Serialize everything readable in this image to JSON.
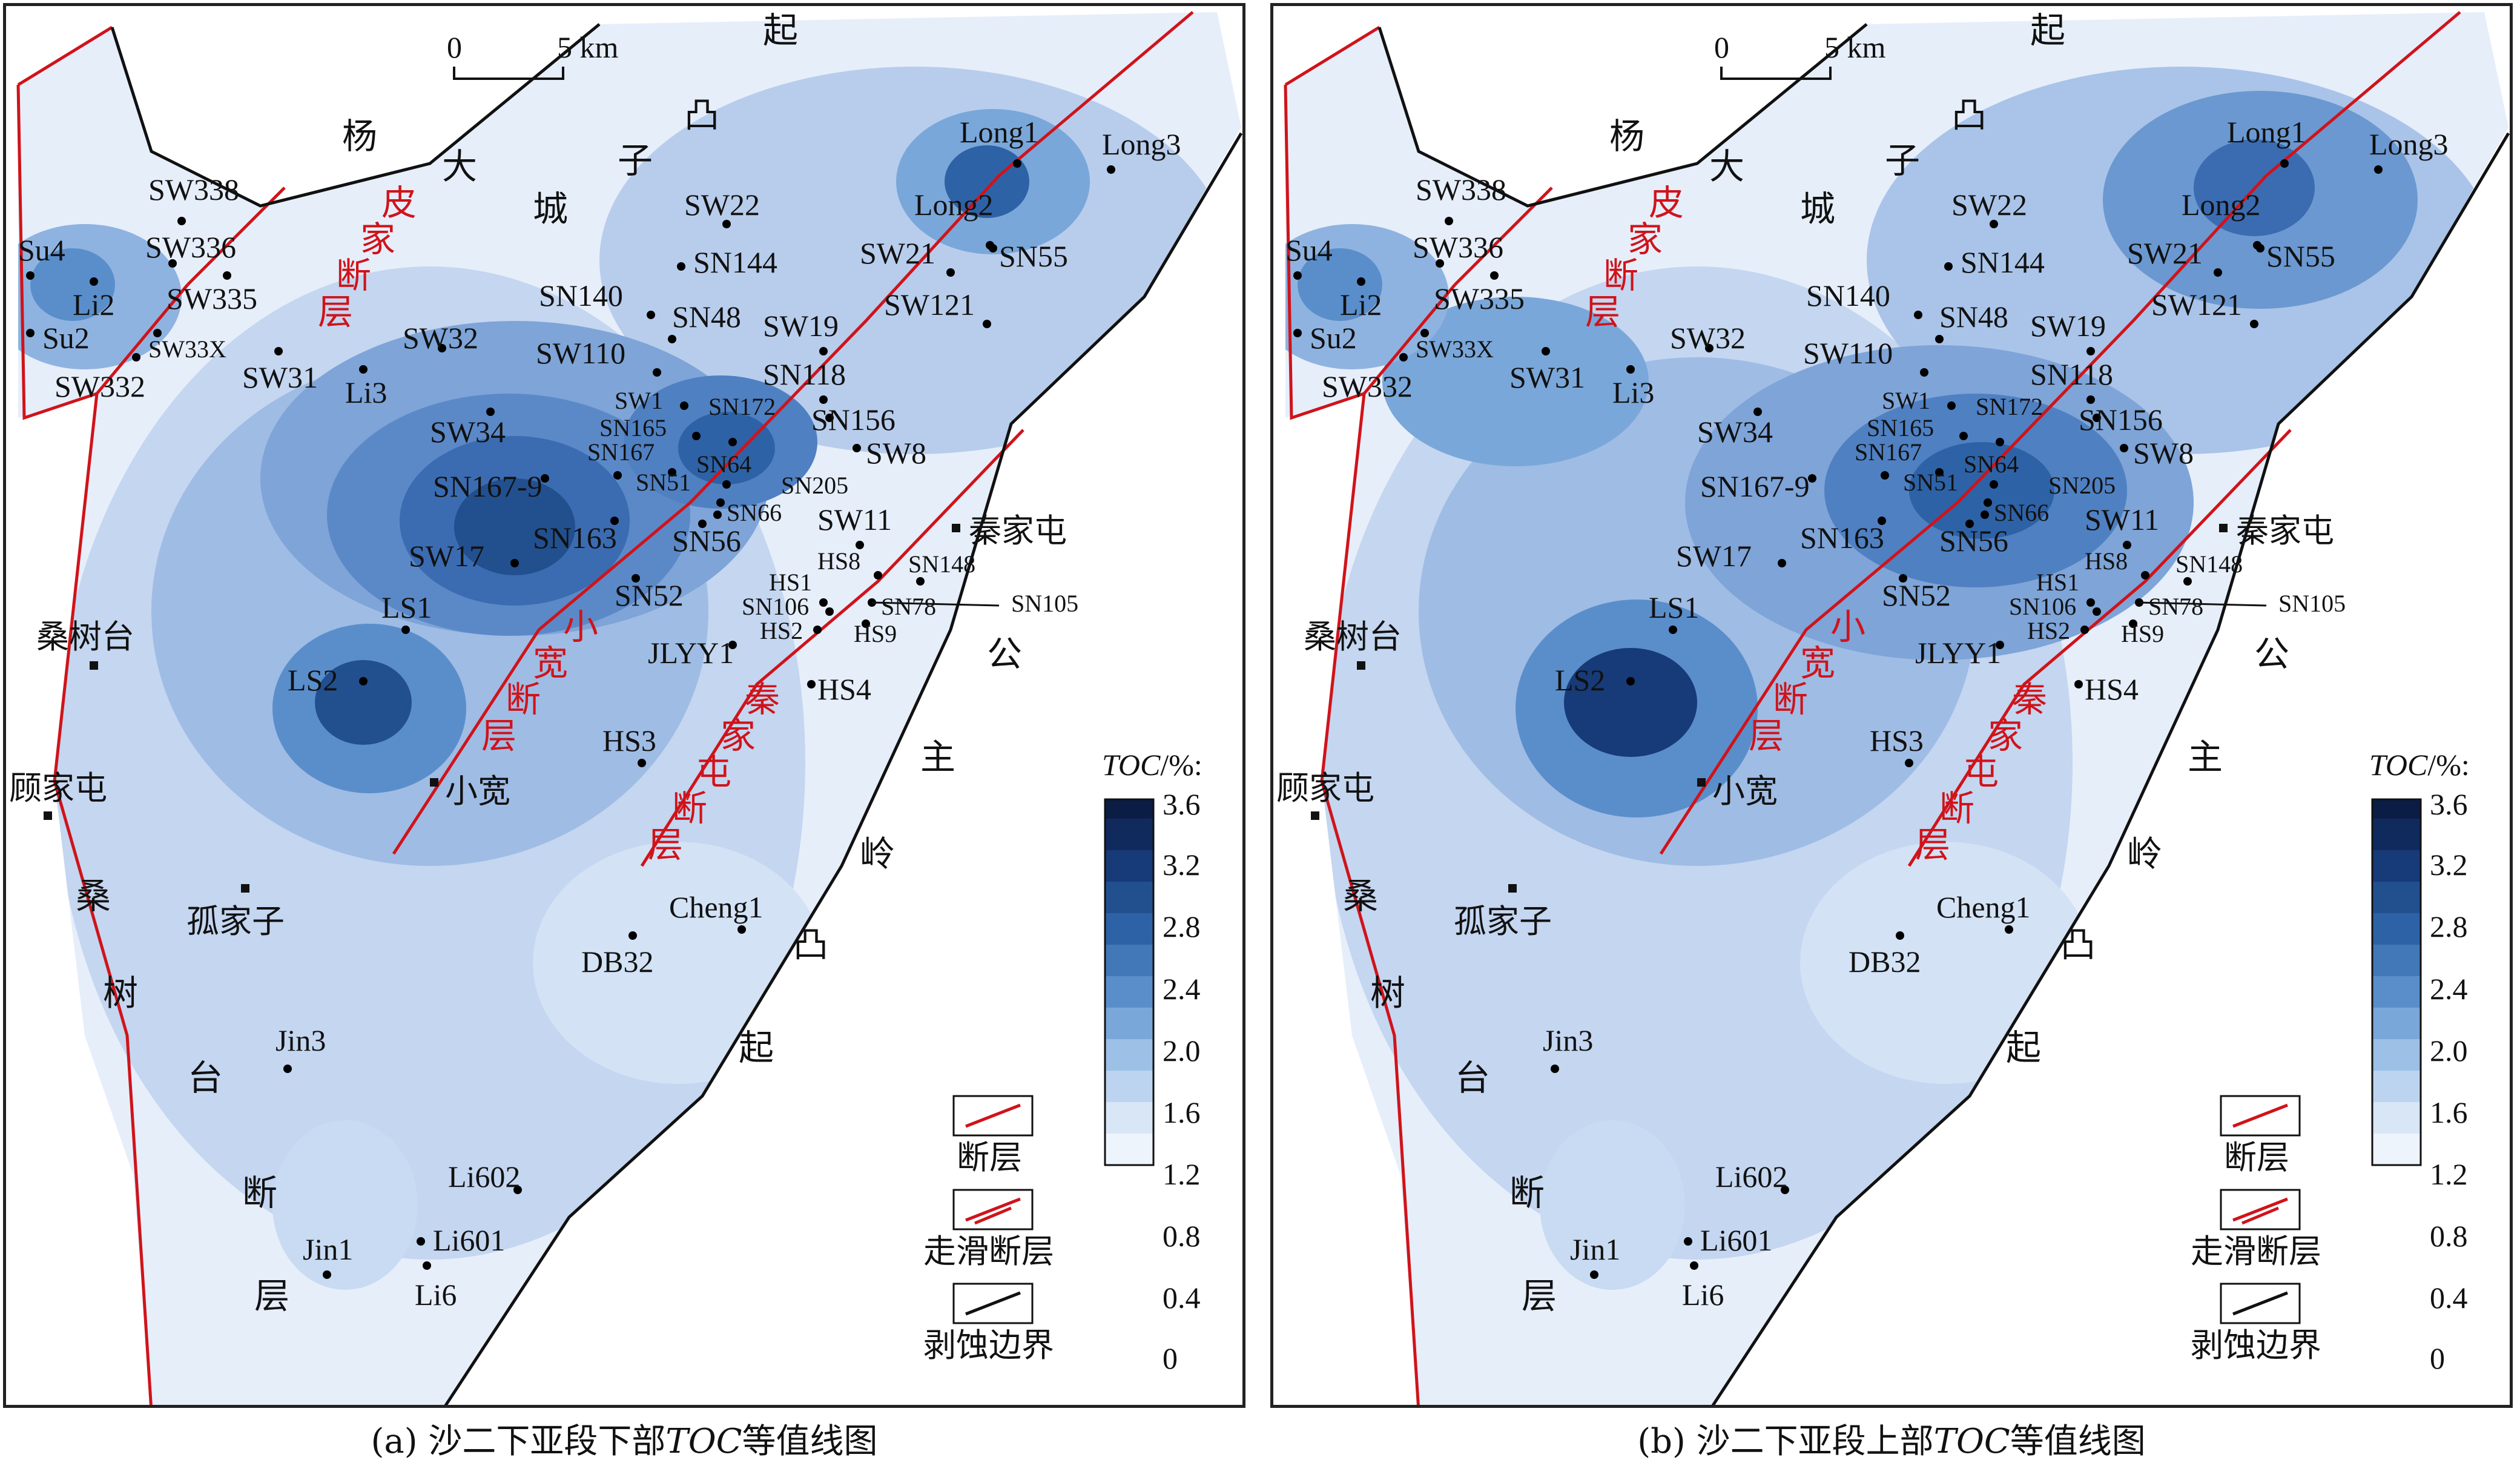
{
  "panels": [
    {
      "id": "a",
      "caption_prefix": "(a) 沙二下亚段下部",
      "caption_toc": "TOC",
      "caption_suffix": "等值线图"
    },
    {
      "id": "b",
      "caption_prefix": "(b) 沙二下亚段上部",
      "caption_toc": "TOC",
      "caption_suffix": "等值线图"
    }
  ],
  "scale_bar": {
    "start": "0",
    "end": "5 km"
  },
  "legend": {
    "title_italic": "TOC",
    "title_suffix": "/%:",
    "ticks": [
      "3.6",
      "3.2",
      "2.8",
      "2.4",
      "2.0",
      "1.6",
      "1.2",
      "0.8",
      "0.4",
      "0"
    ],
    "colors": [
      "#0b1d45",
      "#102a5d",
      "#173a78",
      "#22508f",
      "#2e62a6",
      "#4277b8",
      "#5a8ecb",
      "#7aa7d9",
      "#9cc0e6",
      "#bcd4ef",
      "#d9e6f6",
      "#eef4fc"
    ],
    "symbols": [
      {
        "name": "fault",
        "label": "断层"
      },
      {
        "name": "strike-slip",
        "label": "走滑断层"
      },
      {
        "name": "erosion",
        "label": "剥蚀边界"
      }
    ]
  },
  "regions": {
    "yangdacheng": [
      "杨",
      "大",
      "城",
      "子",
      "凸",
      "起"
    ],
    "gongzhuling": [
      "公",
      "主",
      "岭",
      "凸",
      "起"
    ],
    "sangshutai_fault": [
      "桑",
      "树",
      "台",
      "断",
      "层"
    ],
    "pijia_fault": [
      "皮",
      "家",
      "断",
      "层"
    ],
    "xiaokuan_fault": [
      "小",
      "宽",
      "断",
      "层"
    ],
    "qinjiatun_fault": [
      "秦",
      "家",
      "屯",
      "断",
      "层"
    ]
  },
  "towns": [
    "桑树台",
    "顾家屯",
    "孤家子",
    "秦家屯",
    "小宽"
  ],
  "wells": [
    "Su4",
    "Li2",
    "Su2",
    "SW332",
    "SW338",
    "SW336",
    "SW335",
    "SW33X",
    "SW31",
    "Li3",
    "SW32",
    "SW22",
    "SN144",
    "SN140",
    "SN48",
    "SW110",
    "SW34",
    "SN167-9",
    "SW17",
    "SN163",
    "SN52",
    "LS1",
    "LS2",
    "SW1",
    "SN165",
    "SN167",
    "SN51",
    "SN172",
    "SN64",
    "SN205",
    "SN66",
    "SN56",
    "SW19",
    "SN118",
    "SN156",
    "SW8",
    "SW11",
    "HS1",
    "SN106",
    "HS2",
    "HS8",
    "SN148",
    "SN78",
    "HS9",
    "SN105",
    "JLYY1",
    "HS4",
    "HS3",
    "Long1",
    "Long2",
    "Long3",
    "SW21",
    "SN55",
    "SW121",
    "Cheng1",
    "DB32",
    "Jin3",
    "Li602",
    "Li601",
    "Li6",
    "Jin1"
  ]
}
